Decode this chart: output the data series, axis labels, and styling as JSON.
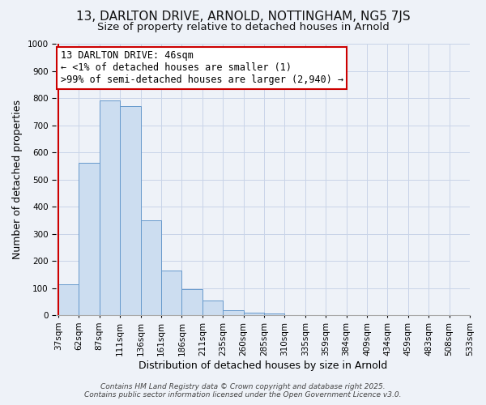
{
  "title_line1": "13, DARLTON DRIVE, ARNOLD, NOTTINGHAM, NG5 7JS",
  "title_line2": "Size of property relative to detached houses in Arnold",
  "xlabel": "Distribution of detached houses by size in Arnold",
  "ylabel": "Number of detached properties",
  "bar_values": [
    115,
    560,
    790,
    770,
    350,
    165,
    97,
    53,
    17,
    10,
    7,
    2,
    1,
    1,
    0,
    0,
    0,
    0,
    0,
    0
  ],
  "bar_labels": [
    "37sqm",
    "62sqm",
    "87sqm",
    "111sqm",
    "136sqm",
    "161sqm",
    "186sqm",
    "211sqm",
    "235sqm",
    "260sqm",
    "285sqm",
    "310sqm",
    "335sqm",
    "359sqm",
    "384sqm",
    "409sqm",
    "434sqm",
    "459sqm",
    "483sqm",
    "508sqm",
    "533sqm"
  ],
  "bar_color": "#ccddf0",
  "bar_edge_color": "#6699cc",
  "highlight_color": "#cc0000",
  "annotation_line1": "13 DARLTON DRIVE: 46sqm",
  "annotation_line2": "← <1% of detached houses are smaller (1)",
  "annotation_line3": ">99% of semi-detached houses are larger (2,940) →",
  "annotation_box_facecolor": "#ffffff",
  "annotation_box_edgecolor": "#cc0000",
  "ylim": [
    0,
    1000
  ],
  "yticks": [
    0,
    100,
    200,
    300,
    400,
    500,
    600,
    700,
    800,
    900,
    1000
  ],
  "footer_line1": "Contains HM Land Registry data © Crown copyright and database right 2025.",
  "footer_line2": "Contains public sector information licensed under the Open Government Licence v3.0.",
  "background_color": "#eef2f8",
  "plot_background": "#eef2f8",
  "grid_color": "#c8d4e8",
  "title_fontsize": 11,
  "subtitle_fontsize": 9.5,
  "axis_label_fontsize": 9,
  "tick_fontsize": 7.5,
  "footer_fontsize": 6.5,
  "annotation_fontsize": 8.5
}
